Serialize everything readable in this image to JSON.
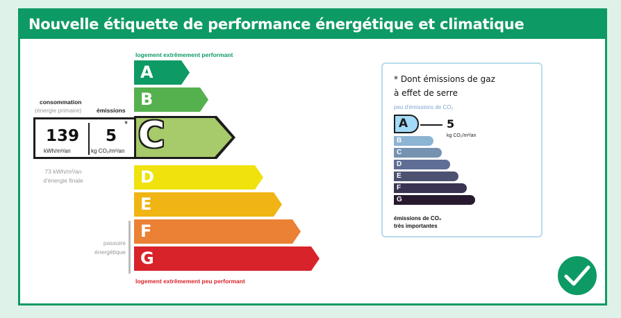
{
  "title": "Nouvelle étiquette de performance énergétique et climatique",
  "dpe": {
    "top_note": "logement extrêmement performant",
    "bottom_note": "logement extrêmement peu performant",
    "classes": [
      {
        "letter": "A",
        "color": "#0e9a64"
      },
      {
        "letter": "B",
        "color": "#55b14d"
      },
      {
        "letter": "C",
        "color": "#a7ca6a"
      },
      {
        "letter": "D",
        "color": "#f0e20c"
      },
      {
        "letter": "E",
        "color": "#f0b514"
      },
      {
        "letter": "F",
        "color": "#eb8134"
      },
      {
        "letter": "G",
        "color": "#d8232a"
      }
    ],
    "current_class": "C",
    "consumption_label": "consommation",
    "consumption_sub": "(énergie primaire)",
    "emissions_label": "émissions",
    "consumption_value": "139",
    "consumption_unit": "kWh/m²/an",
    "emissions_value": "5",
    "emissions_unit": "kg CO₂/m²/an",
    "asterisk": "*",
    "final_energy_line1": "73 kWh/m²/an",
    "final_energy_line2": "d'énergie finale",
    "passoire_line1": "passoire",
    "passoire_line2": "énergétique"
  },
  "ges": {
    "title_line1": "* Dont émissions de gaz",
    "title_line2": "à effet de serre",
    "low_label": "peu d'émissions de CO₂",
    "high_label_line1": "émissions de CO₂",
    "high_label_line2": "très importantes",
    "classes": [
      {
        "letter": "A",
        "color": "#a4dbf8"
      },
      {
        "letter": "B",
        "color": "#8cb4d3"
      },
      {
        "letter": "C",
        "color": "#7692b1"
      },
      {
        "letter": "D",
        "color": "#5e6e94"
      },
      {
        "letter": "E",
        "color": "#4d5271"
      },
      {
        "letter": "F",
        "color": "#3a3451"
      },
      {
        "letter": "G",
        "color": "#271a2e"
      }
    ],
    "current_class": "A",
    "value": "5",
    "unit": "kg CO₂/m²/an"
  },
  "badge_icon": "checkmark-icon"
}
